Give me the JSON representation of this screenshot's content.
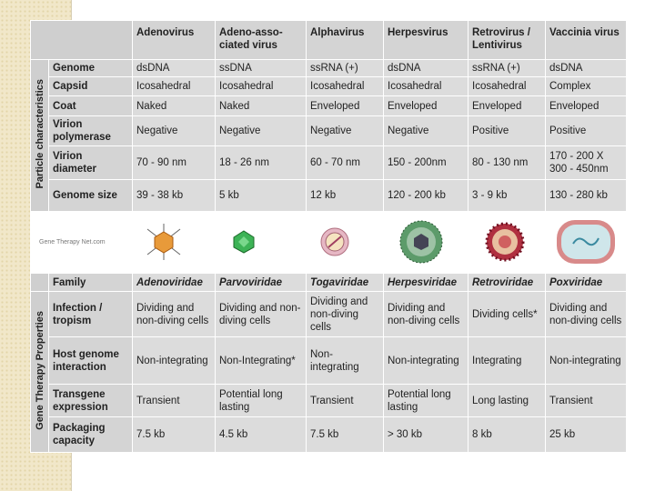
{
  "header": {
    "columns": [
      "Adenovirus",
      "Adeno-asso- ciated virus",
      "Alphavirus",
      "Herpesvirus",
      "Retrovirus / Lentivirus",
      "Vaccinia virus"
    ]
  },
  "sections": [
    {
      "label": "Particle characteristics",
      "rows": [
        {
          "label": "Genome",
          "cells": [
            "dsDNA",
            "ssDNA",
            "ssRNA (+)",
            "dsDNA",
            "ssRNA (+)",
            "dsDNA"
          ]
        },
        {
          "label": "Capsid",
          "cells": [
            "Icosahedral",
            "Icosahedral",
            "Icosahedral",
            "Icosahedral",
            "Icosahedral",
            "Complex"
          ]
        },
        {
          "label": "Coat",
          "cells": [
            "Naked",
            "Naked",
            "Enveloped",
            "Enveloped",
            "Enveloped",
            "Enveloped"
          ]
        },
        {
          "label": "Virion polymerase",
          "cells": [
            "Negative",
            "Negative",
            "Negative",
            "Negative",
            "Positive",
            "Positive"
          ]
        },
        {
          "label": "Virion diameter",
          "cells": [
            "70 - 90 nm",
            "18 - 26 nm",
            "60 - 70 nm",
            "150 - 200nm",
            "80 - 130 nm",
            "170 - 200 X 300 - 450nm"
          ]
        },
        {
          "label": "Genome size",
          "cells": [
            "39 - 38 kb",
            "5 kb",
            "12 kb",
            "120 - 200 kb",
            "3 - 9 kb",
            "130 - 280 kb"
          ]
        }
      ]
    },
    {
      "label": "Gene Therapy Properties",
      "rows": [
        {
          "label": "Infection / tropism",
          "cells": [
            "Dividing and non-diving cells",
            "Dividing and non-diving cells",
            "Dividing and non-diving cells",
            "Dividing and non-diving cells",
            "Dividing cells*",
            "Dividing and non-diving cells"
          ]
        },
        {
          "label": "Host genome interaction",
          "cells": [
            "Non-integrating",
            "Non-Integrating*",
            "Non-integrating",
            "Non-integrating",
            "Integrating",
            "Non-integrating"
          ]
        },
        {
          "label": "Transgene expression",
          "cells": [
            "Transient",
            "Potential long lasting",
            "Transient",
            "Potential long lasting",
            "Long lasting",
            "Transient"
          ]
        },
        {
          "label": "Packaging capacity",
          "cells": [
            "7.5 kb",
            "4.5 kb",
            "7.5 kb",
            "> 30 kb",
            "8 kb",
            "25 kb"
          ]
        }
      ]
    }
  ],
  "image_credit": "Gene Therapy Net.com",
  "family": {
    "label": "Family",
    "cells": [
      "Adenoviridae",
      "Parvoviridae",
      "Togaviridae",
      "Herpesviridae",
      "Retroviridae",
      "Poxviridae"
    ]
  }
}
